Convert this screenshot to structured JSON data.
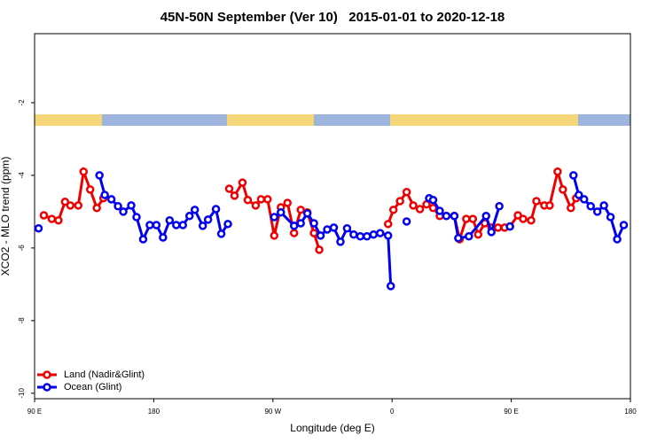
{
  "chart_data": {
    "type": "line",
    "title": "45N-50N September (Ver 10)   2015-01-01 to 2020-12-18",
    "xlabel": "Longitude (deg E)",
    "ylabel": "XCO2 - MLO trend (ppm)",
    "xlim": [
      90,
      540
    ],
    "xticks": [
      {
        "value": 90,
        "label": "90 E"
      },
      180,
      {
        "value": 270,
        "label": "90 W"
      },
      {
        "value": 360,
        "label": "0"
      },
      {
        "value": 450,
        "label": "90 E"
      },
      {
        "value": 540,
        "label": "180"
      }
    ],
    "ylim": [
      -10.15,
      -0.1
    ],
    "yticks": [
      -2,
      -4,
      -6,
      -8,
      -10
    ],
    "legend": "bottom-left",
    "series": [
      {
        "name": "Land (Nadir&Glint)",
        "color": "#ee0000",
        "x": [
          97,
          103,
          108,
          113,
          117,
          123,
          127,
          132,
          137,
          142,
          null,
          237,
          241,
          247,
          251,
          257,
          261,
          266,
          271,
          276,
          281,
          286,
          291,
          296,
          301,
          305,
          null,
          357,
          361,
          366,
          371,
          376,
          381,
          386,
          391,
          396,
          401,
          407,
          411,
          416,
          421,
          425,
          430,
          435,
          440,
          445,
          449,
          455,
          459,
          465,
          469,
          475,
          479,
          485,
          489,
          495,
          499
        ],
        "values": [
          -5.1,
          -5.2,
          -5.24,
          -4.73,
          -4.83,
          -4.83,
          -3.9,
          -4.39,
          -4.9,
          -4.63,
          null,
          -4.37,
          -4.56,
          -4.2,
          -4.68,
          -4.83,
          -4.66,
          -4.66,
          -5.66,
          -4.88,
          -4.76,
          -5.59,
          -4.95,
          -5.02,
          -5.59,
          -6.05,
          null,
          -5.34,
          -4.95,
          -4.71,
          -4.46,
          -4.83,
          -4.93,
          -4.8,
          -4.9,
          -5.12,
          -5.12,
          -5.12,
          -5.76,
          -5.2,
          -5.2,
          -5.63,
          -5.32,
          -5.44,
          -5.44,
          -5.44,
          -5.41,
          -5.1,
          -5.2,
          -5.24,
          -4.71,
          -4.83,
          -4.83,
          -3.9,
          -4.39,
          -4.9,
          -4.63
        ]
      },
      {
        "name": "Ocean (Glint)",
        "color": "#0000ee",
        "x": [
          93,
          null,
          139,
          143,
          148,
          153,
          157,
          163,
          167,
          172,
          177,
          182,
          187,
          192,
          197,
          202,
          207,
          211,
          217,
          221,
          227,
          231,
          236,
          null,
          271,
          276,
          286,
          291,
          296,
          301,
          306,
          311,
          316,
          321,
          326,
          331,
          336,
          341,
          346,
          351,
          357,
          359,
          null,
          371,
          null,
          388,
          391,
          396,
          401,
          407,
          410,
          418,
          431,
          435,
          441,
          null,
          449,
          null,
          497,
          501,
          505,
          510,
          515,
          520,
          525,
          530,
          535
        ],
        "values": [
          -5.46,
          null,
          -4.0,
          -4.54,
          -4.66,
          -4.85,
          -5.0,
          -4.83,
          -5.15,
          -5.76,
          -5.37,
          -5.37,
          -5.71,
          -5.24,
          -5.37,
          -5.37,
          -5.12,
          -4.95,
          -5.39,
          -5.22,
          -4.93,
          -5.61,
          -5.34,
          null,
          -5.15,
          -5.02,
          -5.39,
          -5.32,
          -5.05,
          -5.32,
          -5.66,
          -5.49,
          -5.44,
          -5.83,
          -5.46,
          -5.63,
          -5.68,
          -5.68,
          -5.63,
          -5.59,
          -5.66,
          -7.05,
          null,
          -5.27,
          null,
          -4.63,
          -4.68,
          -4.98,
          -5.12,
          -5.12,
          -5.73,
          -5.68,
          -5.12,
          -5.56,
          -4.85,
          null,
          -5.41,
          null,
          -4.0,
          -4.54,
          -4.66,
          -4.85,
          -5.0,
          -4.83,
          -5.15,
          -5.76,
          -5.37
        ]
      }
    ]
  }
}
